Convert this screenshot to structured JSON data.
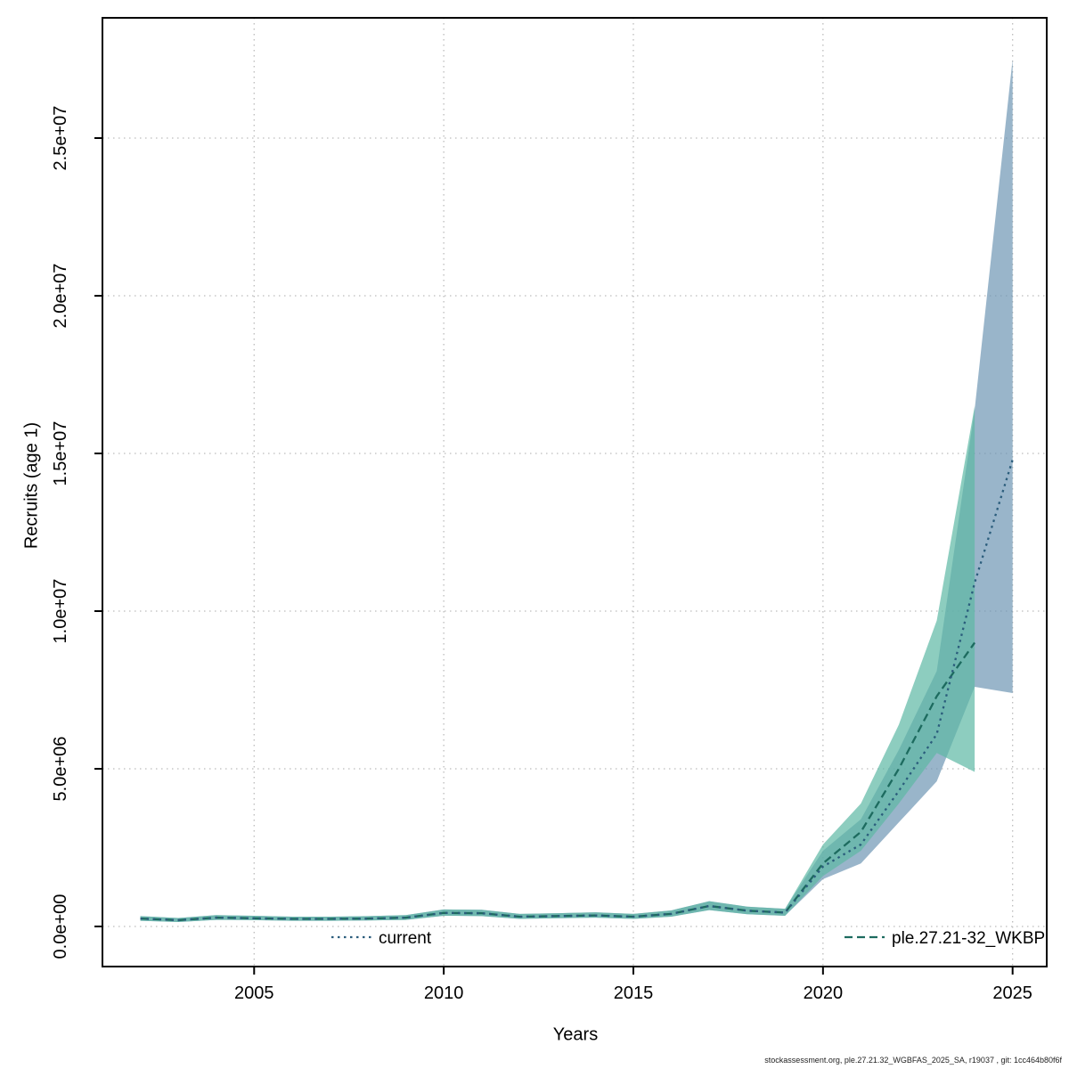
{
  "footer": "stockassessment.org, ple.27.21.32_WGBFAS_2025_SA, r19037 , git: 1cc464b80f6f",
  "chart_data": {
    "type": "line",
    "title": "",
    "xlabel": "Years",
    "ylabel": "Recruits (age 1)",
    "xlim": [
      2001,
      2025.9
    ],
    "ylim": [
      0,
      25000000
    ],
    "grid": true,
    "legend_position": "bottom-inside",
    "x_ticks": [
      2005,
      2010,
      2015,
      2020,
      2025
    ],
    "x_tick_labels": [
      "2005",
      "2010",
      "2015",
      "2020",
      "2025"
    ],
    "y_ticks": [
      0,
      5000000,
      10000000,
      15000000,
      20000000,
      25000000
    ],
    "y_tick_labels": [
      "0.0e+00",
      "5.0e+06",
      "1.0e+07",
      "1.5e+07",
      "2.0e+07",
      "2.5e+07"
    ],
    "series": [
      {
        "name": "current",
        "color": "#2b5d7c",
        "band_color": "#6e96b3",
        "line_style": "dotted",
        "x": [
          2002,
          2003,
          2004,
          2005,
          2006,
          2007,
          2008,
          2009,
          2010,
          2011,
          2012,
          2013,
          2014,
          2015,
          2016,
          2017,
          2018,
          2019,
          2020,
          2021,
          2022,
          2023,
          2024,
          2025
        ],
        "values": [
          250000,
          200000,
          280000,
          260000,
          240000,
          240000,
          250000,
          280000,
          430000,
          420000,
          310000,
          330000,
          350000,
          310000,
          400000,
          650000,
          500000,
          440000,
          1900000,
          2600000,
          4300000,
          6100000,
          10900000,
          14800000
        ],
        "lower": [
          180000,
          140000,
          210000,
          200000,
          180000,
          180000,
          190000,
          210000,
          340000,
          330000,
          240000,
          260000,
          280000,
          240000,
          310000,
          520000,
          390000,
          340000,
          1500000,
          2000000,
          3300000,
          4600000,
          7600000,
          7400000
        ],
        "upper": [
          330000,
          270000,
          360000,
          340000,
          310000,
          310000,
          330000,
          360000,
          540000,
          530000,
          400000,
          420000,
          450000,
          400000,
          510000,
          800000,
          630000,
          560000,
          2400000,
          3400000,
          5600000,
          8100000,
          16400000,
          27500000
        ]
      },
      {
        "name": "ple.27.21-32_WKBP",
        "color": "#1d6b5f",
        "band_color": "#5cb8a4",
        "line_style": "dashed",
        "x": [
          2002,
          2003,
          2004,
          2005,
          2006,
          2007,
          2008,
          2009,
          2010,
          2011,
          2012,
          2013,
          2014,
          2015,
          2016,
          2017,
          2018,
          2019,
          2020,
          2021,
          2022,
          2023,
          2024
        ],
        "values": [
          250000,
          200000,
          280000,
          260000,
          240000,
          240000,
          250000,
          280000,
          430000,
          420000,
          310000,
          330000,
          350000,
          310000,
          400000,
          650000,
          500000,
          440000,
          2000000,
          3000000,
          5000000,
          7300000,
          9000000
        ],
        "lower": [
          180000,
          140000,
          210000,
          200000,
          180000,
          180000,
          190000,
          210000,
          340000,
          330000,
          240000,
          260000,
          280000,
          240000,
          310000,
          520000,
          390000,
          340000,
          1600000,
          2400000,
          3900000,
          5500000,
          4900000
        ],
        "upper": [
          330000,
          270000,
          360000,
          340000,
          310000,
          310000,
          330000,
          360000,
          540000,
          530000,
          400000,
          420000,
          450000,
          400000,
          510000,
          800000,
          630000,
          560000,
          2600000,
          3900000,
          6400000,
          9700000,
          16500000
        ]
      }
    ]
  }
}
